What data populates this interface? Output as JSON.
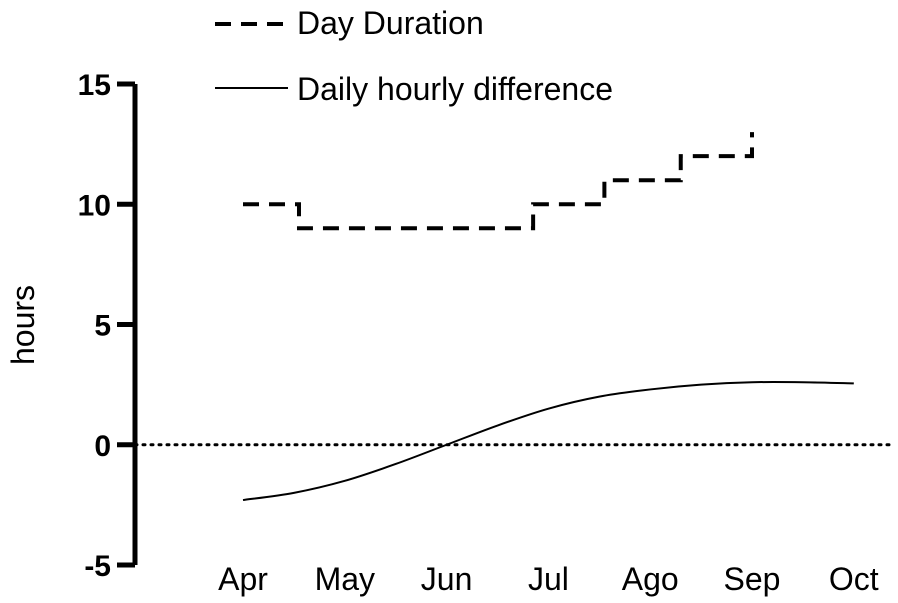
{
  "chart_data": {
    "type": "line",
    "ylabel": "hours",
    "xlabel": "",
    "ylim": [
      -5,
      15
    ],
    "yticks": [
      15,
      10,
      5,
      0,
      -5
    ],
    "ytick_labels": [
      "15",
      "10",
      "5",
      "0",
      "-5"
    ],
    "categories": [
      "Apr",
      "May",
      "Jun",
      "Jul",
      "Ago",
      "Sep",
      "Oct"
    ],
    "grid": false,
    "zero_line": "dotted",
    "legend_position": "top",
    "series": [
      {
        "name": "Day Duration",
        "style": "dashed-step",
        "color": "#000000",
        "points": [
          {
            "x": 0.0,
            "y": 10
          },
          {
            "x": 0.55,
            "y": 10
          },
          {
            "x": 0.55,
            "y": 9
          },
          {
            "x": 2.85,
            "y": 9
          },
          {
            "x": 2.85,
            "y": 10
          },
          {
            "x": 3.55,
            "y": 10
          },
          {
            "x": 3.55,
            "y": 11
          },
          {
            "x": 4.3,
            "y": 11
          },
          {
            "x": 4.3,
            "y": 12
          },
          {
            "x": 5.0,
            "y": 12
          },
          {
            "x": 5.0,
            "y": 13
          }
        ]
      },
      {
        "name": "Daily hourly difference",
        "style": "solid",
        "color": "#000000",
        "points": [
          {
            "x": 0.0,
            "y": -2.3
          },
          {
            "x": 0.5,
            "y": -2.0
          },
          {
            "x": 1.0,
            "y": -1.5
          },
          {
            "x": 1.5,
            "y": -0.8
          },
          {
            "x": 2.0,
            "y": 0.0
          },
          {
            "x": 2.5,
            "y": 0.8
          },
          {
            "x": 3.0,
            "y": 1.5
          },
          {
            "x": 3.5,
            "y": 2.0
          },
          {
            "x": 4.0,
            "y": 2.3
          },
          {
            "x": 4.5,
            "y": 2.5
          },
          {
            "x": 5.0,
            "y": 2.6
          },
          {
            "x": 5.5,
            "y": 2.6
          },
          {
            "x": 6.0,
            "y": 2.55
          }
        ]
      }
    ]
  }
}
